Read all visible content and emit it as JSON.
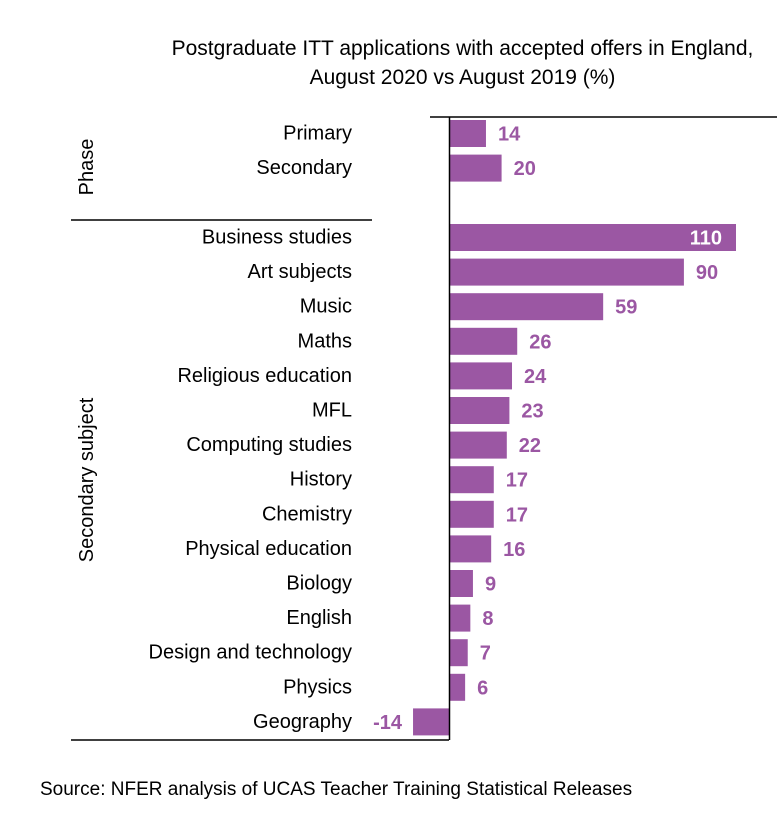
{
  "chart_data": {
    "type": "bar",
    "orientation": "horizontal",
    "title": "Postgraduate ITT applications with accepted offers in England, August 2020 vs August 2019 (%)",
    "groups": [
      {
        "name": "Phase",
        "categories": [
          "Primary",
          "Secondary"
        ],
        "values": [
          14,
          20
        ]
      },
      {
        "name": "Secondary subject",
        "categories": [
          "Business studies",
          "Art subjects",
          "Music",
          "Maths",
          "Religious education",
          "MFL",
          "Computing studies",
          "History",
          "Chemistry",
          "Physical education",
          "Biology",
          "English",
          "Design and technology",
          "Physics",
          "Geography"
        ],
        "values": [
          110,
          90,
          59,
          26,
          24,
          23,
          22,
          17,
          17,
          16,
          9,
          8,
          7,
          6,
          -14
        ]
      }
    ],
    "xlim": [
      -14,
      110
    ],
    "grid": false,
    "legend": "none",
    "bar_color": "#9b57a3",
    "label_color": "#9b57a3",
    "inside_label_color": "#ffffff"
  },
  "source": "Source: NFER analysis of UCAS Teacher Training Statistical Releases"
}
